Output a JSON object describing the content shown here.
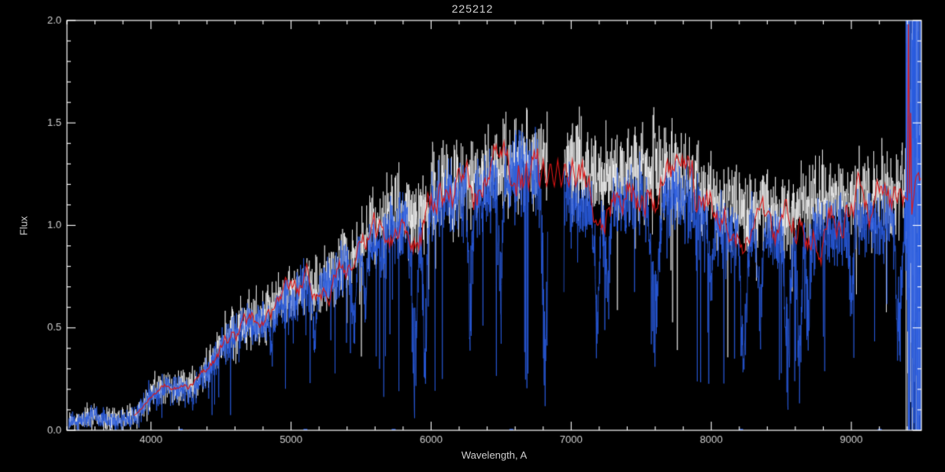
{
  "chart_data": {
    "type": "line",
    "title": "225212",
    "xlabel": "Wavelength, A",
    "ylabel": "Flux",
    "xlim": [
      3400,
      9500
    ],
    "ylim": [
      0.0,
      2.0
    ],
    "background_color": "#000000",
    "axis_color": "#ffffff",
    "text_color": "#d0d0d0",
    "xticks": [
      4000,
      5000,
      6000,
      7000,
      8000,
      9000
    ],
    "xtick_labels": [
      "4000",
      "5000",
      "6000",
      "7000",
      "8000",
      "9000"
    ],
    "yticks": [
      0.0,
      0.5,
      1.0,
      1.5,
      2.0
    ],
    "ytick_labels": [
      "0.0",
      "0.5",
      "1.0",
      "1.5",
      "2.0"
    ],
    "x_minor_step": 200,
    "y_minor_step": 0.1,
    "grid": false,
    "legend": false,
    "series": [
      {
        "name": "observed-spectrum-white",
        "color": "#ffffff"
      },
      {
        "name": "observed-spectrum-blue",
        "color": "#2a5cdf"
      },
      {
        "name": "smoothed-template-red",
        "color": "#dd1515"
      }
    ],
    "continuum": {
      "wavelength": [
        3400,
        3500,
        3600,
        3700,
        3800,
        3900,
        4000,
        4100,
        4200,
        4300,
        4400,
        4500,
        4600,
        4700,
        4800,
        4900,
        5000,
        5100,
        5200,
        5300,
        5400,
        5500,
        5600,
        5700,
        5800,
        5900,
        6000,
        6100,
        6200,
        6300,
        6400,
        6500,
        6600,
        6700,
        6800,
        6900,
        7000,
        7100,
        7200,
        7300,
        7400,
        7500,
        7600,
        7700,
        7800,
        7900,
        8000,
        8100,
        8200,
        8300,
        8400,
        8500,
        8600,
        8700,
        8800,
        8900,
        9000,
        9100,
        9200,
        9300,
        9400,
        9500
      ],
      "flux": [
        0.04,
        0.05,
        0.06,
        0.05,
        0.05,
        0.08,
        0.18,
        0.21,
        0.2,
        0.22,
        0.3,
        0.4,
        0.48,
        0.52,
        0.55,
        0.6,
        0.66,
        0.7,
        0.68,
        0.76,
        0.8,
        0.86,
        0.93,
        0.98,
        1.03,
        1.0,
        1.1,
        1.16,
        1.14,
        1.18,
        1.21,
        1.24,
        1.26,
        1.27,
        1.28,
        1.25,
        1.22,
        1.16,
        1.14,
        1.17,
        1.19,
        1.21,
        1.19,
        1.21,
        1.19,
        1.13,
        1.07,
        1.04,
        1.01,
        0.99,
        1.01,
        0.99,
        1.01,
        1.04,
        1.04,
        1.06,
        1.07,
        1.09,
        1.09,
        1.1,
        1.11,
        1.13
      ]
    },
    "order_gap": [
      6832,
      6948
    ],
    "absorption_bands": [
      {
        "center": 4300,
        "width": 14,
        "depth": 0.35
      },
      {
        "center": 4860,
        "width": 12,
        "depth": 0.4
      },
      {
        "center": 5170,
        "width": 14,
        "depth": 0.45
      },
      {
        "center": 5450,
        "width": 12,
        "depth": 0.5
      },
      {
        "center": 5530,
        "width": 10,
        "depth": 0.4
      },
      {
        "center": 5880,
        "width": 18,
        "depth": 0.95
      },
      {
        "center": 5955,
        "width": 14,
        "depth": 0.9
      },
      {
        "center": 6280,
        "width": 14,
        "depth": 0.7
      },
      {
        "center": 6495,
        "width": 12,
        "depth": 0.6
      },
      {
        "center": 6815,
        "width": 18,
        "depth": 0.95
      },
      {
        "center": 7185,
        "width": 18,
        "depth": 0.6
      },
      {
        "center": 7255,
        "width": 14,
        "depth": 0.5
      },
      {
        "center": 7600,
        "width": 24,
        "depth": 0.75
      },
      {
        "center": 8000,
        "width": 14,
        "depth": 0.4
      },
      {
        "center": 8230,
        "width": 18,
        "depth": 0.85
      },
      {
        "center": 8350,
        "width": 14,
        "depth": 0.55
      },
      {
        "center": 8545,
        "width": 16,
        "depth": 0.92
      },
      {
        "center": 8630,
        "width": 16,
        "depth": 0.92
      },
      {
        "center": 8690,
        "width": 12,
        "depth": 0.6
      },
      {
        "center": 9000,
        "width": 14,
        "depth": 0.45
      },
      {
        "center": 9340,
        "width": 18,
        "depth": 0.8
      }
    ],
    "emission_spikes": [
      {
        "center": 7600,
        "width": 7,
        "peak": 1.62
      }
    ],
    "noisy_edge_start": 9390,
    "zero_marks": [
      4210,
      5100,
      5730,
      6570,
      8210,
      9200
    ]
  }
}
